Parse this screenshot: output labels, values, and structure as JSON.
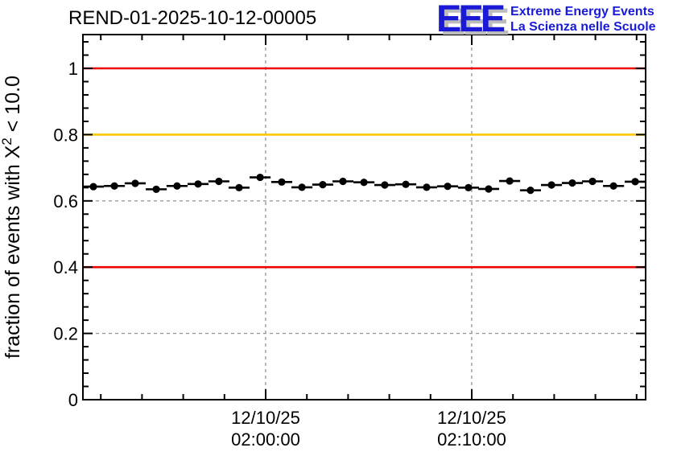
{
  "header": {
    "title": "REND-01-2025-10-12-00005",
    "logo": {
      "acronym": "EEE",
      "line1": "Extreme Energy Events",
      "line2": "La Scienza nelle Scuole",
      "blue": "#1a1ad6",
      "shadow_gray": "#bcbcbc"
    }
  },
  "chart_data": {
    "type": "scatter",
    "title": "REND-01-2025-10-12-00005",
    "ylabel": "fraction of events with X^2 < 10.0",
    "ylabel_parts": {
      "prefix": "fraction of events with X",
      "sup": "2",
      "suffix": " < 10.0"
    },
    "xlabel": "",
    "grid": "dashed-major",
    "legend_position": "none",
    "colors": {
      "marker": "#000000",
      "frame": "#000000",
      "grid": "#9a9a9a",
      "ref_red": "#ee0000",
      "ref_orange": "#ffc800"
    },
    "x_axis": {
      "unit": "minutes relative to 02:00:00",
      "range": [
        -8.87,
        18.44
      ],
      "minor_step": 2,
      "major_ticks": [
        {
          "t": 0,
          "label_lines": [
            "12/10/25",
            "02:00:00"
          ]
        },
        {
          "t": 10,
          "label_lines": [
            "12/10/25",
            "02:10:00"
          ]
        }
      ]
    },
    "y_axis": {
      "range": [
        0,
        1.102
      ],
      "major_step": 0.2,
      "minor_step": 0.04,
      "tick_values": [
        0,
        0.2,
        0.4,
        0.6,
        0.8,
        1.0
      ],
      "tick_labels": [
        "0",
        "0.2",
        "0.4",
        "0.6",
        "0.8",
        "1"
      ]
    },
    "reference_lines": [
      {
        "y": 1.0,
        "color": "#ee0000"
      },
      {
        "y": 0.8,
        "color": "#ffc800"
      },
      {
        "y": 0.4,
        "color": "#ee0000"
      }
    ],
    "gridlines": {
      "y_dashed": [
        0.2,
        0.6
      ],
      "x_dashed_t": [
        0,
        10
      ]
    },
    "series": [
      {
        "name": "fraction of events with chi2 < 10.0",
        "marker": "filled-circle",
        "color": "#000000",
        "x_bin_halfwidth_min": 0.51,
        "y_error": 0.006,
        "points": [
          {
            "t": -8.36,
            "y": 0.643
          },
          {
            "t": -7.34,
            "y": 0.645
          },
          {
            "t": -6.33,
            "y": 0.653
          },
          {
            "t": -5.31,
            "y": 0.635
          },
          {
            "t": -4.3,
            "y": 0.645
          },
          {
            "t": -3.28,
            "y": 0.651
          },
          {
            "t": -2.27,
            "y": 0.659
          },
          {
            "t": -1.29,
            "y": 0.64
          },
          {
            "t": -0.27,
            "y": 0.671
          },
          {
            "t": 0.78,
            "y": 0.657
          },
          {
            "t": 1.76,
            "y": 0.641
          },
          {
            "t": 2.77,
            "y": 0.649
          },
          {
            "t": 3.75,
            "y": 0.659
          },
          {
            "t": 4.77,
            "y": 0.656
          },
          {
            "t": 5.78,
            "y": 0.648
          },
          {
            "t": 6.8,
            "y": 0.65
          },
          {
            "t": 7.81,
            "y": 0.641
          },
          {
            "t": 8.83,
            "y": 0.644
          },
          {
            "t": 9.84,
            "y": 0.64
          },
          {
            "t": 10.82,
            "y": 0.636
          },
          {
            "t": 11.84,
            "y": 0.66
          },
          {
            "t": 12.85,
            "y": 0.632
          },
          {
            "t": 13.87,
            "y": 0.648
          },
          {
            "t": 14.88,
            "y": 0.654
          },
          {
            "t": 15.86,
            "y": 0.659
          },
          {
            "t": 16.88,
            "y": 0.645
          },
          {
            "t": 17.93,
            "y": 0.658
          }
        ]
      }
    ]
  }
}
